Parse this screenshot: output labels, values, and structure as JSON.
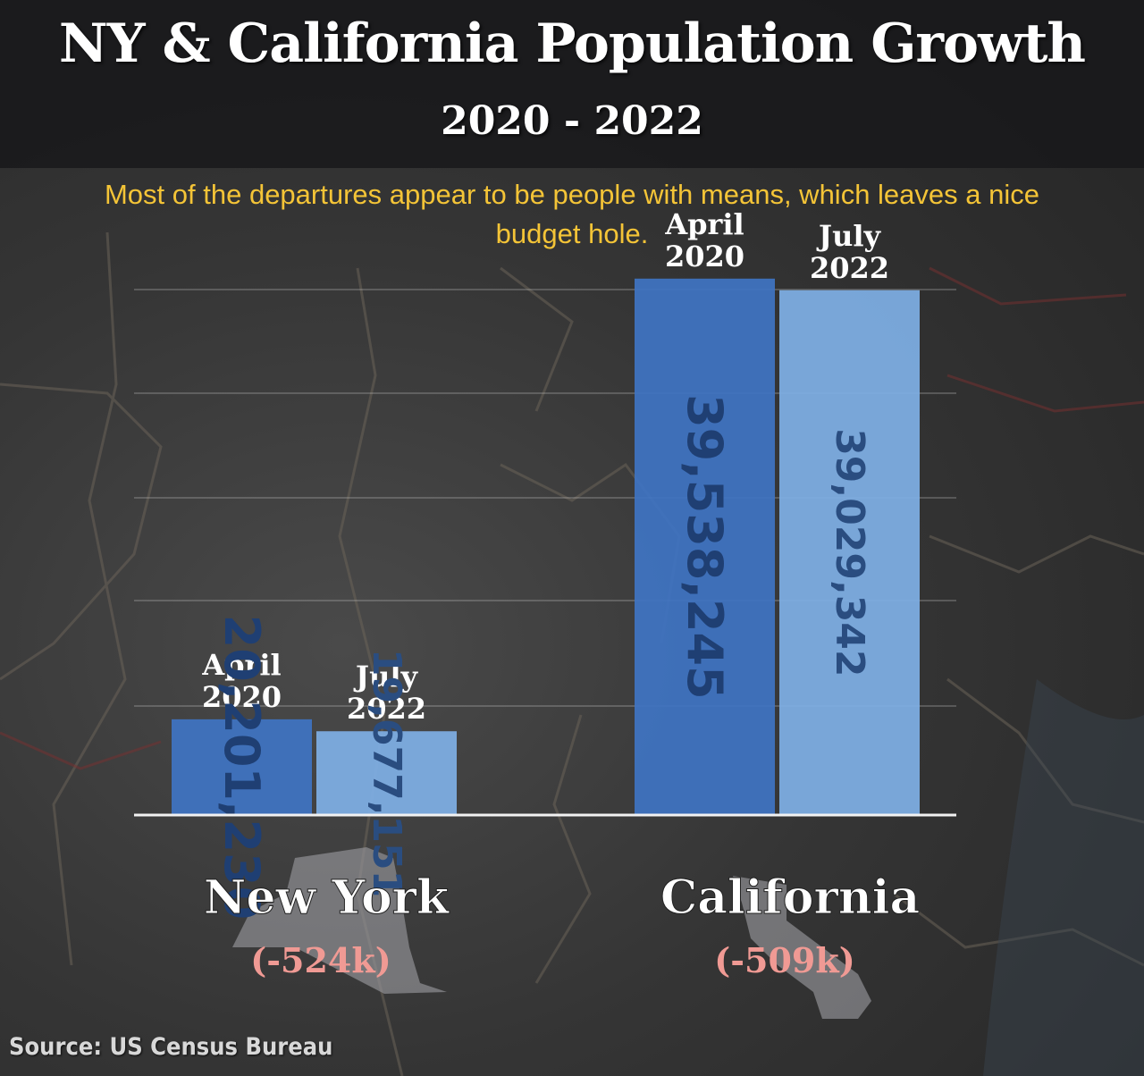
{
  "header": {
    "title": "NY & California Population Growth",
    "subtitle": "2020 - 2022"
  },
  "caption": "Most of the departures appear to be people with means, which leaves a nice budget hole.",
  "source": "Source: US Census Bureau",
  "colors": {
    "bar_2020": "#3f74c3",
    "bar_2022": "#7fb0e6",
    "value_text_2020": "#1f3f73",
    "value_text_2022": "#2a4d80",
    "change_text": "#f09a94",
    "state_label": "#ffffff",
    "caption_text": "#f4c437"
  },
  "chart_data": {
    "type": "bar",
    "groups": [
      {
        "state": "New York",
        "change": "(-524k)",
        "icon": "new-york-state-silhouette",
        "bars": [
          {
            "period": "April 2020",
            "label_line1": "April",
            "label_line2": "2020",
            "value": 20201230,
            "value_label": "20,201,230"
          },
          {
            "period": "July 2022",
            "label_line1": "July",
            "label_line2": "2022",
            "value": 19677151,
            "value_label": "19,677,151"
          }
        ]
      },
      {
        "state": "California",
        "change": "(-509k)",
        "icon": "california-state-silhouette",
        "bars": [
          {
            "period": "April 2020",
            "label_line1": "April",
            "label_line2": "2020",
            "value": 39538245,
            "value_label": "39,538,245"
          },
          {
            "period": "July 2022",
            "label_line1": "July",
            "label_line2": "2022",
            "value": 39029342,
            "value_label": "39,029,342"
          }
        ]
      }
    ],
    "grid": true,
    "legend": "none"
  }
}
